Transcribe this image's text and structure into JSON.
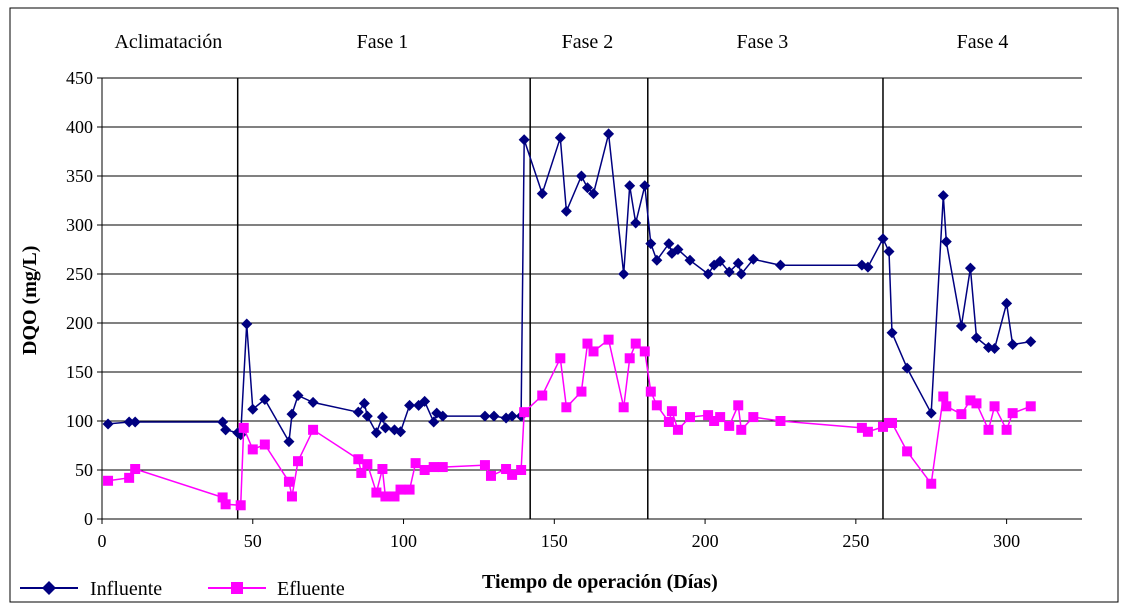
{
  "chart_data": {
    "type": "line",
    "title": "",
    "xlabel": "Tiempo de operación (Días)",
    "ylabel": "DQO (mg/L)",
    "xlim": [
      0,
      325
    ],
    "ylim": [
      0,
      450
    ],
    "xticks": [
      0,
      50,
      100,
      150,
      200,
      250,
      300
    ],
    "yticks": [
      0,
      50,
      100,
      150,
      200,
      250,
      300,
      350,
      400,
      450
    ],
    "grid": "horizontal",
    "legend_position": "bottom-left",
    "phase_boundaries": [
      45,
      142,
      181,
      259
    ],
    "phases": [
      {
        "label": "Aclimatación",
        "x": 22
      },
      {
        "label": "Fase 1",
        "x": 93
      },
      {
        "label": "Fase 2",
        "x": 161
      },
      {
        "label": "Fase 3",
        "x": 219
      },
      {
        "label": "Fase 4",
        "x": 292
      }
    ],
    "series": [
      {
        "name": "Influente",
        "color": "#000080",
        "marker": "diamond",
        "points": [
          [
            2,
            97
          ],
          [
            9,
            99
          ],
          [
            11,
            99
          ],
          [
            40,
            99
          ],
          [
            41,
            91
          ],
          [
            45,
            88
          ],
          [
            46,
            86
          ],
          [
            48,
            199
          ],
          [
            50,
            112
          ],
          [
            54,
            122
          ],
          [
            62,
            79
          ],
          [
            63,
            107
          ],
          [
            65,
            126
          ],
          [
            70,
            119
          ],
          [
            85,
            109
          ],
          [
            87,
            118
          ],
          [
            88,
            105
          ],
          [
            91,
            88
          ],
          [
            93,
            104
          ],
          [
            94,
            93
          ],
          [
            97,
            91
          ],
          [
            99,
            89
          ],
          [
            102,
            116
          ],
          [
            105,
            116
          ],
          [
            107,
            120
          ],
          [
            110,
            99
          ],
          [
            111,
            108
          ],
          [
            113,
            105
          ],
          [
            127,
            105
          ],
          [
            130,
            105
          ],
          [
            134,
            103
          ],
          [
            136,
            105
          ],
          [
            139,
            105
          ],
          [
            140,
            387
          ],
          [
            146,
            332
          ],
          [
            152,
            389
          ],
          [
            154,
            314
          ],
          [
            159,
            350
          ],
          [
            161,
            338
          ],
          [
            163,
            332
          ],
          [
            168,
            393
          ],
          [
            173,
            250
          ],
          [
            175,
            340
          ],
          [
            177,
            302
          ],
          [
            180,
            340
          ],
          [
            182,
            281
          ],
          [
            184,
            264
          ],
          [
            188,
            281
          ],
          [
            189,
            271
          ],
          [
            191,
            275
          ],
          [
            195,
            264
          ],
          [
            201,
            250
          ],
          [
            203,
            259
          ],
          [
            205,
            263
          ],
          [
            208,
            252
          ],
          [
            211,
            261
          ],
          [
            212,
            250
          ],
          [
            216,
            265
          ],
          [
            225,
            259
          ],
          [
            252,
            259
          ],
          [
            254,
            257
          ],
          [
            259,
            286
          ],
          [
            261,
            273
          ],
          [
            262,
            190
          ],
          [
            267,
            154
          ],
          [
            275,
            108
          ],
          [
            279,
            330
          ],
          [
            280,
            283
          ],
          [
            285,
            197
          ],
          [
            288,
            256
          ],
          [
            290,
            185
          ],
          [
            294,
            175
          ],
          [
            296,
            174
          ],
          [
            300,
            220
          ],
          [
            302,
            178
          ],
          [
            308,
            181
          ]
        ]
      },
      {
        "name": "Efluente",
        "color": "#ff00ff",
        "marker": "square",
        "points": [
          [
            2,
            39
          ],
          [
            9,
            42
          ],
          [
            11,
            51
          ],
          [
            40,
            22
          ],
          [
            41,
            15
          ],
          [
            46,
            14
          ],
          [
            47,
            93
          ],
          [
            50,
            71
          ],
          [
            54,
            76
          ],
          [
            62,
            38
          ],
          [
            63,
            23
          ],
          [
            65,
            59
          ],
          [
            70,
            91
          ],
          [
            85,
            61
          ],
          [
            86,
            47
          ],
          [
            88,
            56
          ],
          [
            91,
            27
          ],
          [
            93,
            51
          ],
          [
            94,
            23
          ],
          [
            97,
            23
          ],
          [
            99,
            30
          ],
          [
            102,
            30
          ],
          [
            104,
            57
          ],
          [
            107,
            50
          ],
          [
            110,
            53
          ],
          [
            113,
            53
          ],
          [
            127,
            55
          ],
          [
            129,
            44
          ],
          [
            134,
            51
          ],
          [
            136,
            45
          ],
          [
            139,
            50
          ],
          [
            140,
            109
          ],
          [
            146,
            126
          ],
          [
            152,
            164
          ],
          [
            154,
            114
          ],
          [
            159,
            130
          ],
          [
            161,
            179
          ],
          [
            163,
            171
          ],
          [
            168,
            183
          ],
          [
            173,
            114
          ],
          [
            175,
            164
          ],
          [
            177,
            179
          ],
          [
            180,
            171
          ],
          [
            182,
            130
          ],
          [
            184,
            116
          ],
          [
            188,
            99
          ],
          [
            189,
            110
          ],
          [
            191,
            91
          ],
          [
            195,
            104
          ],
          [
            201,
            106
          ],
          [
            203,
            100
          ],
          [
            205,
            104
          ],
          [
            208,
            95
          ],
          [
            211,
            116
          ],
          [
            212,
            91
          ],
          [
            216,
            104
          ],
          [
            225,
            100
          ],
          [
            252,
            93
          ],
          [
            254,
            89
          ],
          [
            259,
            94
          ],
          [
            261,
            98
          ],
          [
            262,
            98
          ],
          [
            267,
            69
          ],
          [
            275,
            36
          ],
          [
            279,
            125
          ],
          [
            280,
            115
          ],
          [
            285,
            107
          ],
          [
            288,
            121
          ],
          [
            290,
            118
          ],
          [
            294,
            91
          ],
          [
            296,
            115
          ],
          [
            300,
            91
          ],
          [
            302,
            108
          ],
          [
            308,
            115
          ]
        ]
      }
    ]
  }
}
